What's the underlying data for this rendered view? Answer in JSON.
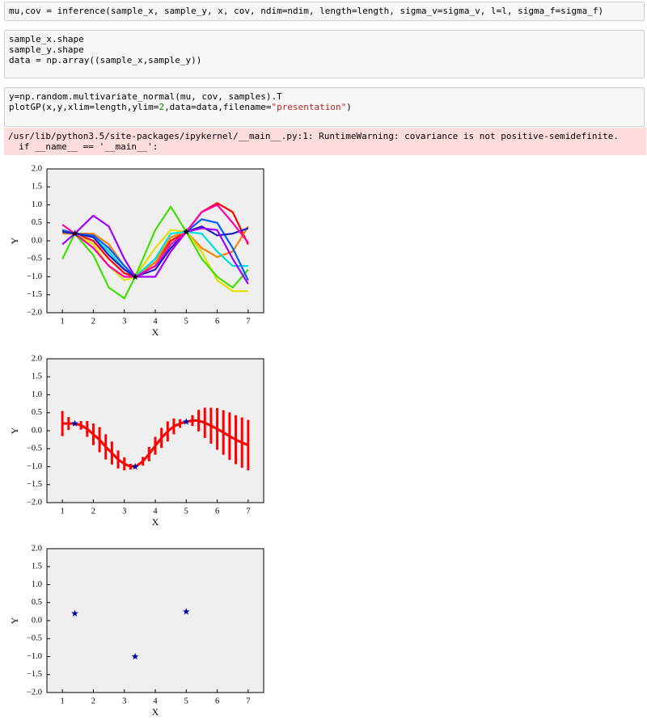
{
  "cells": [
    {
      "lines": [
        [
          {
            "text": "mu,cov = inference(sample_x, sample_y, x, cov, ndim=ndim, length=length, sigma_v=sigma_v, l=l, sigma_f=sigma_f)"
          }
        ]
      ]
    },
    {
      "lines": [
        [
          {
            "text": "sample_x.shape"
          }
        ],
        [
          {
            "text": "sample_y.shape"
          }
        ],
        [
          {
            "text": "data = np.array((sample_x,sample_y))"
          }
        ]
      ]
    },
    {
      "lines": [
        [
          {
            "text": "y=np.random.multivariate_normal(mu, cov, samples).T"
          }
        ],
        [
          {
            "text": "plotGP(x,y,xlim=length,ylim="
          },
          {
            "text": "2",
            "color": "#008800"
          },
          {
            "text": ",data=data,filename="
          },
          {
            "text": "\"presentation\"",
            "color": "#ba2121"
          },
          {
            "text": ")"
          }
        ]
      ]
    }
  ],
  "output": {
    "lines": [
      "/usr/lib/python3.5/site-packages/ipykernel/__main__.py:1: RuntimeWarning: covariance is not positive-semidefinite.",
      "  if __name__ == '__main__':"
    ]
  },
  "chart_data": [
    {
      "type": "line",
      "xlabel": "X",
      "ylabel": "Y",
      "xlim": [
        0.5,
        7.5
      ],
      "ylim": [
        -2,
        2
      ],
      "grid": false,
      "xticks": [
        1,
        2,
        3,
        4,
        5,
        6,
        7
      ],
      "yticks": [
        {
          "value": -2,
          "label": "−2.0"
        },
        {
          "value": -1.5,
          "label": "−1.5"
        },
        {
          "value": -1,
          "label": "−1.0"
        },
        {
          "value": -0.5,
          "label": "−0.5"
        },
        {
          "value": 0,
          "label": "0.0"
        },
        {
          "value": 0.5,
          "label": "0.5"
        },
        {
          "value": 1,
          "label": "1.0"
        },
        {
          "value": 1.5,
          "label": "1.5"
        },
        {
          "value": 2,
          "label": "2.0"
        }
      ],
      "x": [
        1,
        1.4,
        2,
        2.5,
        3,
        3.35,
        4,
        4.5,
        5,
        5.5,
        6,
        6.5,
        7
      ],
      "series": [
        {
          "color": "#ff0000",
          "values": [
            0.3,
            0.2,
            0.0,
            -0.5,
            -0.9,
            -1.0,
            -0.6,
            0.0,
            0.25,
            0.8,
            1.05,
            0.8,
            -0.1
          ]
        },
        {
          "color": "#ff8000",
          "values": [
            0.2,
            0.2,
            0.2,
            -0.1,
            -0.7,
            -1.0,
            -0.6,
            0.1,
            0.25,
            -0.2,
            -0.45,
            -0.3,
            0.4
          ]
        },
        {
          "color": "#e0e000",
          "values": [
            0.3,
            0.2,
            -0.1,
            -0.7,
            -1.1,
            -1.0,
            -0.2,
            0.3,
            0.25,
            -0.3,
            -1.1,
            -1.4,
            -1.4
          ]
        },
        {
          "color": "#40e000",
          "values": [
            -0.5,
            0.2,
            -0.4,
            -1.3,
            -1.6,
            -1.0,
            0.3,
            0.95,
            0.25,
            -0.5,
            -1.0,
            -1.3,
            -0.8
          ]
        },
        {
          "color": "#00e0e0",
          "values": [
            0.25,
            0.2,
            0.1,
            -0.3,
            -0.8,
            -1.0,
            -0.5,
            0.2,
            0.25,
            0.2,
            -0.3,
            -0.7,
            -0.7
          ]
        },
        {
          "color": "#0060ff",
          "values": [
            0.3,
            0.2,
            0.15,
            -0.2,
            -0.7,
            -1.0,
            -0.7,
            -0.2,
            0.25,
            0.6,
            0.5,
            -0.2,
            -1.1
          ]
        },
        {
          "color": "#2020c0",
          "values": [
            0.25,
            0.2,
            0.1,
            -0.4,
            -0.8,
            -1.0,
            -0.8,
            -0.2,
            0.25,
            0.4,
            0.15,
            0.2,
            0.35
          ]
        },
        {
          "color": "#a000ff",
          "values": [
            -0.1,
            0.2,
            0.7,
            0.4,
            -0.5,
            -1.0,
            -1.0,
            -0.3,
            0.25,
            0.35,
            0.3,
            -0.5,
            -1.2
          ]
        },
        {
          "color": "#ff00aa",
          "values": [
            0.45,
            0.2,
            -0.2,
            -0.7,
            -1.0,
            -1.0,
            -0.7,
            -0.1,
            0.25,
            0.8,
            1.0,
            0.5,
            -0.05
          ]
        }
      ],
      "points": {
        "color": "#000000",
        "x": [
          1.4,
          3.35,
          5.0
        ],
        "y": [
          0.2,
          -1.0,
          0.25
        ]
      }
    },
    {
      "type": "errorbar",
      "xlabel": "X",
      "ylabel": "Y",
      "xlim": [
        0.5,
        7.5
      ],
      "ylim": [
        -2,
        2
      ],
      "grid": false,
      "xticks": [
        1,
        2,
        3,
        4,
        5,
        6,
        7
      ],
      "yticks": [
        {
          "value": -2,
          "label": "−2.0"
        },
        {
          "value": -1.5,
          "label": "−1.5"
        },
        {
          "value": -1,
          "label": "−1.0"
        },
        {
          "value": -0.5,
          "label": "−0.5"
        },
        {
          "value": 0,
          "label": "0.0"
        },
        {
          "value": 0.5,
          "label": "0.5"
        },
        {
          "value": 1,
          "label": "1.0"
        },
        {
          "value": 1.5,
          "label": "1.5"
        },
        {
          "value": 2,
          "label": "2.0"
        }
      ],
      "x": [
        1,
        1.2,
        1.4,
        1.6,
        1.8,
        2,
        2.2,
        2.4,
        2.6,
        2.8,
        3,
        3.2,
        3.4,
        3.6,
        3.8,
        4,
        4.2,
        4.4,
        4.6,
        4.8,
        5,
        5.2,
        5.4,
        5.6,
        5.8,
        6,
        6.2,
        6.4,
        6.6,
        6.8,
        7
      ],
      "series": [
        {
          "color": "#ff0000",
          "values": [
            0.2,
            0.2,
            0.2,
            0.15,
            0.05,
            -0.1,
            -0.25,
            -0.45,
            -0.62,
            -0.8,
            -0.92,
            -1.0,
            -0.98,
            -0.85,
            -0.65,
            -0.42,
            -0.2,
            -0.02,
            0.12,
            0.2,
            0.25,
            0.28,
            0.28,
            0.22,
            0.14,
            0.05,
            -0.05,
            -0.15,
            -0.25,
            -0.33,
            -0.4
          ],
          "errors": [
            0.35,
            0.18,
            0.02,
            0.12,
            0.22,
            0.3,
            0.35,
            0.35,
            0.32,
            0.25,
            0.18,
            0.08,
            0.03,
            0.12,
            0.2,
            0.25,
            0.28,
            0.28,
            0.22,
            0.12,
            0.02,
            0.15,
            0.3,
            0.42,
            0.5,
            0.58,
            0.62,
            0.66,
            0.68,
            0.7,
            0.7
          ]
        }
      ],
      "points": {
        "color": "#0000aa",
        "x": [
          1.4,
          3.35,
          5.0
        ],
        "y": [
          0.2,
          -1.0,
          0.25
        ]
      }
    },
    {
      "type": "scatter",
      "xlabel": "X",
      "ylabel": "Y",
      "xlim": [
        0.5,
        7.5
      ],
      "ylim": [
        -2,
        2
      ],
      "grid": false,
      "xticks": [
        1,
        2,
        3,
        4,
        5,
        6,
        7
      ],
      "yticks": [
        {
          "value": -2,
          "label": "−2.0"
        },
        {
          "value": -1.5,
          "label": "−1.5"
        },
        {
          "value": -1,
          "label": "−1.0"
        },
        {
          "value": -0.5,
          "label": "−0.5"
        },
        {
          "value": 0,
          "label": "0.0"
        },
        {
          "value": 0.5,
          "label": "0.5"
        },
        {
          "value": 1,
          "label": "1.0"
        },
        {
          "value": 1.5,
          "label": "1.5"
        },
        {
          "value": 2,
          "label": "2.0"
        }
      ],
      "points": {
        "color": "#0000aa",
        "x": [
          1.4,
          3.35,
          5.0
        ],
        "y": [
          0.2,
          -1.0,
          0.25
        ]
      }
    }
  ]
}
